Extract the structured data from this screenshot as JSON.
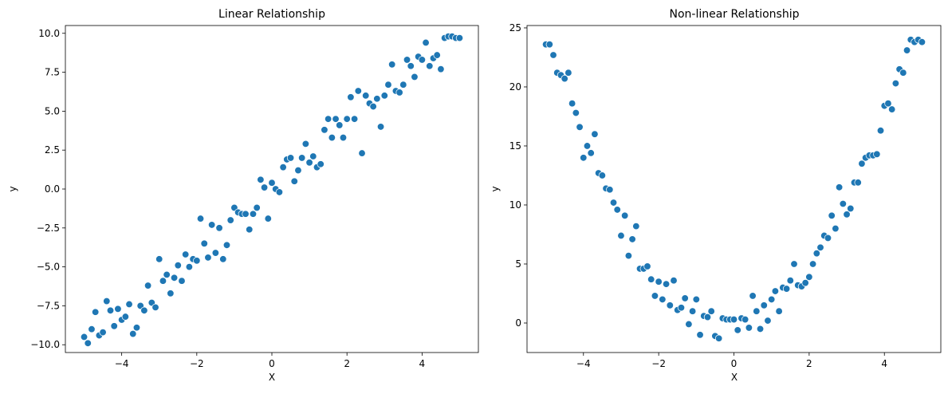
{
  "chart_data": [
    {
      "type": "scatter",
      "title": "Linear Relationship",
      "xlabel": "X",
      "ylabel": "y",
      "xlim": [
        -5.5,
        5.5
      ],
      "ylim": [
        -10.5,
        10.5
      ],
      "xticks": [
        -4,
        -2,
        0,
        2,
        4
      ],
      "xtick_labels": [
        "−4",
        "−2",
        "0",
        "2",
        "4"
      ],
      "yticks": [
        -10,
        -7.5,
        -5,
        -2.5,
        0,
        2.5,
        5,
        7.5,
        10
      ],
      "ytick_labels": [
        "−10.0",
        "−7.5",
        "−5.0",
        "−2.5",
        "0.0",
        "2.5",
        "5.0",
        "7.5",
        "10.0"
      ],
      "grid": false,
      "color": "#1f77b4",
      "x": [
        -5.0,
        -4.9,
        -4.8,
        -4.7,
        -4.6,
        -4.5,
        -4.4,
        -4.3,
        -4.2,
        -4.1,
        -4.0,
        -3.9,
        -3.8,
        -3.7,
        -3.6,
        -3.5,
        -3.4,
        -3.3,
        -3.2,
        -3.1,
        -3.0,
        -2.9,
        -2.8,
        -2.7,
        -2.6,
        -2.5,
        -2.4,
        -2.3,
        -2.2,
        -2.1,
        -2.0,
        -1.9,
        -1.8,
        -1.7,
        -1.6,
        -1.5,
        -1.4,
        -1.3,
        -1.2,
        -1.1,
        -1.0,
        -0.9,
        -0.8,
        -0.7,
        -0.6,
        -0.5,
        -0.4,
        -0.3,
        -0.2,
        -0.1,
        0.0,
        0.1,
        0.2,
        0.3,
        0.4,
        0.5,
        0.6,
        0.7,
        0.8,
        0.9,
        1.0,
        1.1,
        1.2,
        1.3,
        1.4,
        1.5,
        1.6,
        1.7,
        1.8,
        1.9,
        2.0,
        2.1,
        2.2,
        2.3,
        2.4,
        2.5,
        2.6,
        2.7,
        2.8,
        2.9,
        3.0,
        3.1,
        3.2,
        3.3,
        3.4,
        3.5,
        3.6,
        3.7,
        3.8,
        3.9,
        4.0,
        4.1,
        4.2,
        4.3,
        4.4,
        4.5,
        4.6,
        4.7,
        4.8,
        4.9,
        5.0
      ],
      "y": [
        -9.5,
        -9.9,
        -9.0,
        -7.9,
        -9.4,
        -9.2,
        -7.2,
        -7.8,
        -8.8,
        -7.7,
        -8.4,
        -8.2,
        -7.4,
        -9.3,
        -8.9,
        -7.5,
        -7.8,
        -6.2,
        -7.3,
        -7.6,
        -4.5,
        -5.9,
        -5.5,
        -6.7,
        -5.7,
        -4.9,
        -5.9,
        -4.2,
        -5.0,
        -4.5,
        -4.6,
        -1.9,
        -3.5,
        -4.4,
        -2.3,
        -4.1,
        -2.5,
        -4.5,
        -3.6,
        -2.0,
        -1.2,
        -1.5,
        -1.6,
        -1.6,
        -2.6,
        -1.6,
        -1.2,
        0.6,
        0.1,
        -1.9,
        0.4,
        0.0,
        -0.2,
        1.4,
        1.9,
        2.0,
        0.5,
        1.2,
        2.0,
        2.9,
        1.7,
        2.1,
        1.4,
        1.6,
        3.8,
        4.5,
        3.3,
        4.5,
        4.1,
        3.3,
        4.5,
        5.9,
        4.5,
        6.3,
        2.3,
        6.0,
        5.5,
        5.3,
        5.8,
        4.0,
        6.0,
        6.7,
        8.0,
        6.3,
        6.2,
        6.7,
        8.3,
        7.9,
        7.2,
        8.5,
        8.3,
        9.4,
        7.9,
        8.4,
        8.6,
        7.7,
        9.7,
        9.8,
        9.8,
        9.7,
        9.7
      ]
    },
    {
      "type": "scatter",
      "title": "Non-linear Relationship",
      "xlabel": "X",
      "ylabel": "y",
      "xlim": [
        -5.5,
        5.5
      ],
      "ylim": [
        -2.5,
        25.2
      ],
      "xticks": [
        -4,
        -2,
        0,
        2,
        4
      ],
      "xtick_labels": [
        "−4",
        "−2",
        "0",
        "2",
        "4"
      ],
      "yticks": [
        0,
        5,
        10,
        15,
        20,
        25
      ],
      "ytick_labels": [
        "0",
        "5",
        "10",
        "15",
        "20",
        "25"
      ],
      "grid": false,
      "color": "#1f77b4",
      "x": [
        -5.0,
        -4.9,
        -4.8,
        -4.7,
        -4.6,
        -4.5,
        -4.4,
        -4.3,
        -4.2,
        -4.1,
        -4.0,
        -3.9,
        -3.8,
        -3.7,
        -3.6,
        -3.5,
        -3.4,
        -3.3,
        -3.2,
        -3.1,
        -3.0,
        -2.9,
        -2.8,
        -2.7,
        -2.6,
        -2.5,
        -2.4,
        -2.3,
        -2.2,
        -2.1,
        -2.0,
        -1.9,
        -1.8,
        -1.7,
        -1.6,
        -1.5,
        -1.4,
        -1.3,
        -1.2,
        -1.1,
        -1.0,
        -0.9,
        -0.8,
        -0.7,
        -0.6,
        -0.5,
        -0.4,
        -0.3,
        -0.2,
        -0.1,
        0.0,
        0.1,
        0.2,
        0.3,
        0.4,
        0.5,
        0.6,
        0.7,
        0.8,
        0.9,
        1.0,
        1.1,
        1.2,
        1.3,
        1.4,
        1.5,
        1.6,
        1.7,
        1.8,
        1.9,
        2.0,
        2.1,
        2.2,
        2.3,
        2.4,
        2.5,
        2.6,
        2.7,
        2.8,
        2.9,
        3.0,
        3.1,
        3.2,
        3.3,
        3.4,
        3.5,
        3.6,
        3.7,
        3.8,
        3.9,
        4.0,
        4.1,
        4.2,
        4.3,
        4.4,
        4.5,
        4.6,
        4.7,
        4.8,
        4.9,
        5.0
      ],
      "y": [
        23.6,
        23.6,
        22.7,
        21.2,
        21.0,
        20.7,
        21.2,
        18.6,
        17.8,
        16.6,
        14.0,
        15.0,
        14.4,
        16.0,
        12.7,
        12.5,
        11.4,
        11.3,
        10.2,
        9.6,
        7.4,
        9.1,
        5.7,
        7.1,
        8.2,
        4.6,
        4.6,
        4.8,
        3.7,
        2.3,
        3.5,
        2.0,
        3.3,
        1.5,
        3.6,
        1.1,
        1.3,
        2.1,
        -0.1,
        1.0,
        2.0,
        -1.0,
        0.6,
        0.5,
        1.0,
        -1.1,
        -1.3,
        0.4,
        0.3,
        0.3,
        0.3,
        -0.6,
        0.4,
        0.3,
        -0.4,
        2.3,
        1.0,
        -0.5,
        1.5,
        0.2,
        2.0,
        2.7,
        1.0,
        3.0,
        2.9,
        3.6,
        5.0,
        3.2,
        3.1,
        3.4,
        3.9,
        5.0,
        5.9,
        6.4,
        7.4,
        7.2,
        9.1,
        8.0,
        11.5,
        10.1,
        9.2,
        9.7,
        11.9,
        11.9,
        13.5,
        14.0,
        14.2,
        14.2,
        14.3,
        16.3,
        18.4,
        18.6,
        18.1,
        20.3,
        21.5,
        21.2,
        23.1,
        24.0,
        23.8,
        24.0,
        23.8
      ]
    }
  ]
}
